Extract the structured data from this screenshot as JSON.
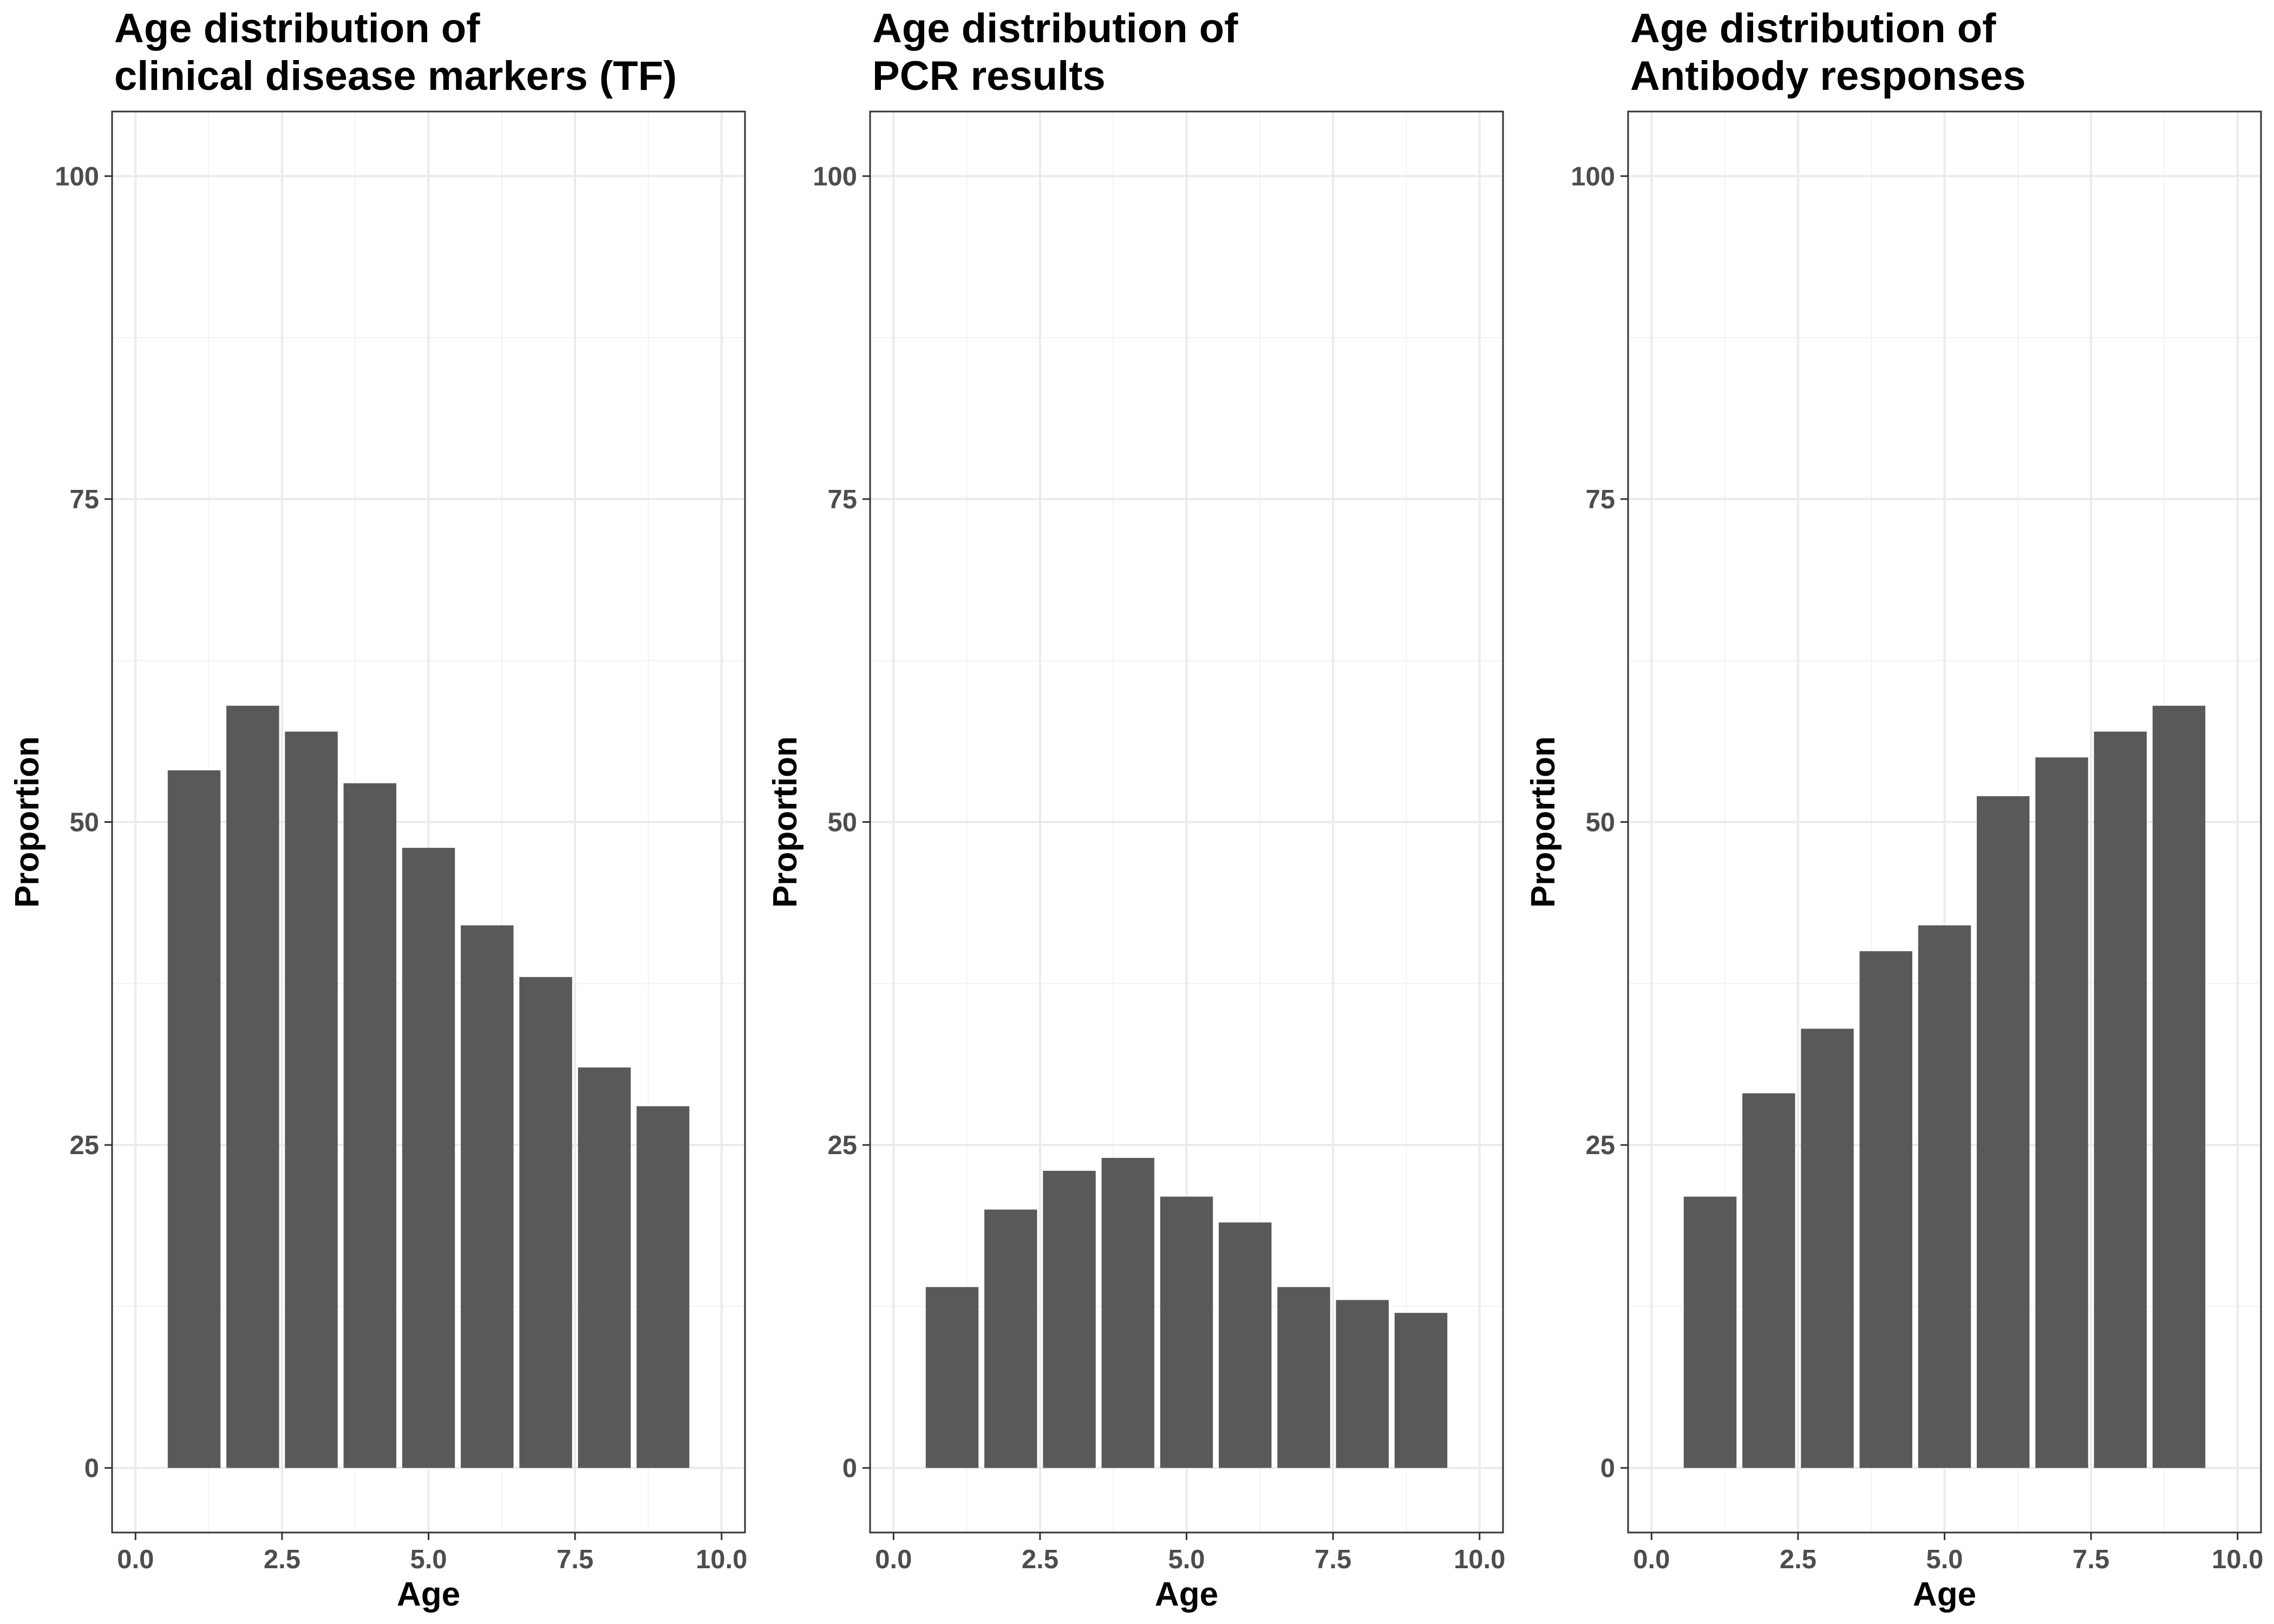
{
  "chart_data": [
    {
      "type": "bar",
      "title_lines": [
        "Age distribution of",
        "clinical disease markers (TF)"
      ],
      "xlabel": "Age",
      "ylabel": "Proportion",
      "x": [
        1,
        2,
        3,
        4,
        5,
        6,
        7,
        8,
        9
      ],
      "values": [
        54,
        59,
        57,
        53,
        48,
        42,
        38,
        31,
        28
      ],
      "xlim": [
        0,
        10
      ],
      "ylim": [
        0,
        100
      ],
      "xticks": [
        "0.0",
        "2.5",
        "5.0",
        "7.5",
        "10.0"
      ],
      "yticks": [
        "0",
        "25",
        "50",
        "75",
        "100"
      ],
      "bar_color": "#595959",
      "grid": true
    },
    {
      "type": "bar",
      "title_lines": [
        "Age distribution of",
        "PCR results"
      ],
      "xlabel": "Age",
      "ylabel": "Proportion",
      "x": [
        1,
        2,
        3,
        4,
        5,
        6,
        7,
        8,
        9
      ],
      "values": [
        14,
        20,
        23,
        24,
        21,
        19,
        14,
        13,
        12
      ],
      "xlim": [
        0,
        10
      ],
      "ylim": [
        0,
        100
      ],
      "xticks": [
        "0.0",
        "2.5",
        "5.0",
        "7.5",
        "10.0"
      ],
      "yticks": [
        "0",
        "25",
        "50",
        "75",
        "100"
      ],
      "bar_color": "#595959",
      "grid": true
    },
    {
      "type": "bar",
      "title_lines": [
        "Age distribution of",
        "Antibody responses"
      ],
      "xlabel": "Age",
      "ylabel": "Proportion",
      "x": [
        1,
        2,
        3,
        4,
        5,
        6,
        7,
        8,
        9
      ],
      "values": [
        21,
        29,
        34,
        40,
        42,
        52,
        55,
        57,
        59
      ],
      "xlim": [
        0,
        10
      ],
      "ylim": [
        0,
        100
      ],
      "xticks": [
        "0.0",
        "2.5",
        "5.0",
        "7.5",
        "10.0"
      ],
      "yticks": [
        "0",
        "25",
        "50",
        "75",
        "100"
      ],
      "bar_color": "#595959",
      "grid": true
    }
  ]
}
